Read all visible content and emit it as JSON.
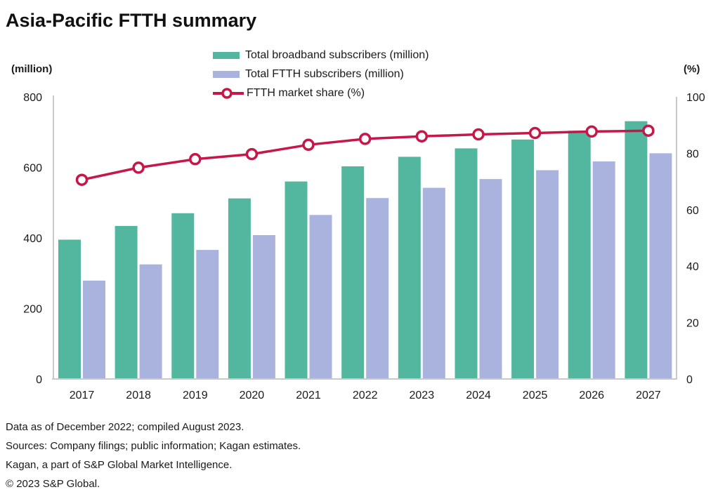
{
  "header": {
    "title": "Asia-Pacific FTTH summary"
  },
  "axis_labels": {
    "left": "(million)",
    "right": "(%)"
  },
  "legend": {
    "items": [
      {
        "label": "Total broadband subscribers (million)",
        "marker": "bar-swatch",
        "color": "#52B79E"
      },
      {
        "label": "Total FTTH subscribers (million)",
        "marker": "bar-swatch",
        "color": "#A9B3DE"
      },
      {
        "label": "FTTH market share (%)",
        "marker": "line-circle-marker",
        "color": "#C51849"
      }
    ]
  },
  "colors": {
    "broadband_bar": "#52B79E",
    "ftth_bar": "#A9B3DE",
    "share_line": "#C51849",
    "axis_line": "#C9C9C9",
    "text": "#1a1a1a"
  },
  "chart_data": {
    "type": "bar",
    "subtype": "grouped-bars-with-line",
    "title": "Asia-Pacific FTTH summary",
    "categories": [
      "2017",
      "2018",
      "2019",
      "2020",
      "2021",
      "2022",
      "2023",
      "2024",
      "2025",
      "2026",
      "2027"
    ],
    "series": [
      {
        "name": "Total broadband subscribers (million)",
        "type": "bar",
        "axis": "left",
        "color": "#52B79E",
        "values": [
          395,
          434,
          470,
          512,
          560,
          603,
          630,
          654,
          679,
          704,
          731
        ]
      },
      {
        "name": "Total FTTH subscribers (million)",
        "type": "bar",
        "axis": "left",
        "color": "#A9B3DE",
        "values": [
          279,
          325,
          366,
          408,
          465,
          513,
          542,
          567,
          592,
          617,
          640
        ]
      },
      {
        "name": "FTTH market share (%)",
        "type": "line",
        "axis": "right",
        "color": "#C51849",
        "values": [
          70.6,
          74.9,
          77.9,
          79.7,
          83.0,
          85.1,
          86.0,
          86.7,
          87.2,
          87.7,
          88.0
        ]
      }
    ],
    "y_left": {
      "label": "(million)",
      "min": 0,
      "max": 800,
      "ticks": [
        0,
        200,
        400,
        600,
        800
      ]
    },
    "y_right": {
      "label": "(%)",
      "min": 0,
      "max": 100,
      "ticks": [
        0,
        20,
        40,
        60,
        80,
        100
      ]
    },
    "grid": false,
    "legend_position": "top-center"
  },
  "footer": {
    "lines": [
      "Data as of December 2022; compiled August 2023.",
      "Sources: Company filings; public information; Kagan estimates.",
      "Kagan, a part of S&P Global Market Intelligence.",
      "© 2023 S&P Global."
    ]
  }
}
